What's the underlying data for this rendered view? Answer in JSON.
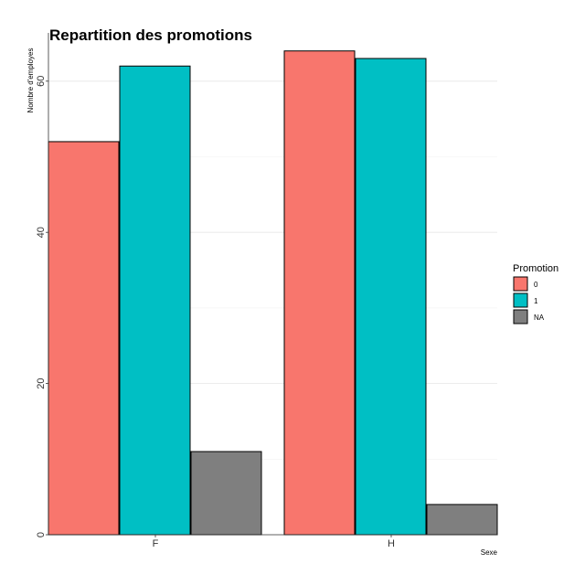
{
  "chart_data": {
    "type": "bar",
    "title": "Repartition des promotions",
    "xlabel": "Sexe",
    "ylabel": "Nombre d'employes",
    "categories": [
      "F",
      "H"
    ],
    "series": [
      {
        "name": "0",
        "values": [
          52,
          64
        ],
        "color": "#F8766D"
      },
      {
        "name": "1",
        "values": [
          62,
          63
        ],
        "color": "#00BFC4"
      },
      {
        "name": "NA",
        "values": [
          11,
          4
        ],
        "color": "#7F7F7F"
      }
    ],
    "ylim": [
      0,
      65
    ],
    "yticks": [
      0,
      20,
      40,
      60
    ],
    "legend": {
      "title": "Promotion",
      "position": "right"
    },
    "grid": true
  }
}
